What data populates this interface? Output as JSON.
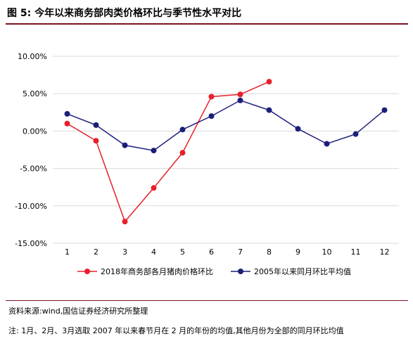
{
  "figure": {
    "title": "图 5:  今年以来商务部肉类价格环比与季节性水平对比",
    "source": "资料来源:wind,国信证券经济研究所整理",
    "note": "注:  1月、2月、3月选取 2007 年以来春节月在 2 月的年份的均值,其他月份为全部的同月环比均值"
  },
  "colors": {
    "series_2018": "#e8202a",
    "series_avg": "#1c1f78",
    "rule": "#7b1420",
    "grid": "#d9d9d9"
  },
  "chart_data": {
    "type": "line",
    "categories": [
      "1",
      "2",
      "3",
      "4",
      "5",
      "6",
      "7",
      "8",
      "9",
      "10",
      "11",
      "12"
    ],
    "ylim": [
      -15,
      10
    ],
    "yticks": [
      10,
      5,
      0,
      -5,
      -10,
      -15
    ],
    "ytick_labels": [
      "10.00%",
      "5.00%",
      "0.00%",
      "-5.00%",
      "-10.00%",
      "-15.00%"
    ],
    "grid": true,
    "legend_position": "bottom",
    "series": [
      {
        "name": "2018年商务部各月猪肉价格环比",
        "color": "#e8202a",
        "values": [
          1.0,
          -1.3,
          -12.1,
          -7.6,
          -2.9,
          4.6,
          4.9,
          6.6,
          null,
          null,
          null,
          null
        ]
      },
      {
        "name": "2005年以来同月环比平均值",
        "color": "#1c1f78",
        "values": [
          2.3,
          0.8,
          -1.9,
          -2.6,
          0.2,
          2.0,
          4.1,
          2.8,
          0.3,
          -1.7,
          -0.4,
          2.8
        ]
      }
    ]
  }
}
